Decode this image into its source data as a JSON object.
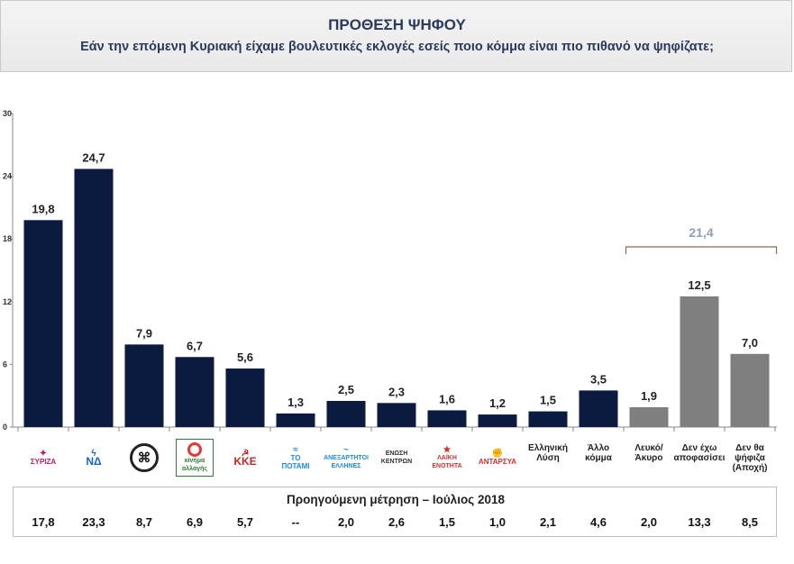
{
  "header": {
    "title": "ΠΡΟΘΕΣΗ ΨΗΦΟΥ",
    "subtitle": "Εάν την επόμενη Κυριακή είχαμε βουλευτικές εκλογές εσείς ποιο κόμμα είναι πιο πιθανό να ψηφίζατε;"
  },
  "chart_data": {
    "type": "bar",
    "title": "ΠΡΟΘΕΣΗ ΨΗΦΟΥ",
    "categories": [
      "ΣΥΡΙΖΑ",
      "ΝΔ",
      "Χρυσή Αυγή",
      "κίνημα αλλαγής",
      "ΚΚΕ",
      "ΤΟ ΠΟΤΑΜΙ",
      "ΑΝΕΞΑΡΤΗΤΟΙ ΕΛΛΗΝΕΣ",
      "ΕΝΩΣΗ ΚΕΝΤΡΩΝ",
      "ΛΑΪΚΗ ΕΝΟΤΗΤΑ",
      "ΑΝΤΑΡΣΥΑ",
      "Ελληνική Λύση",
      "Άλλο κόμμα",
      "Λευκό/ Άκυρο",
      "Δεν έχω αποφασίσει",
      "Δεν θα ψήφιζα (Αποχή)"
    ],
    "values": [
      19.8,
      24.7,
      7.9,
      6.7,
      5.6,
      1.3,
      2.5,
      2.3,
      1.6,
      1.2,
      1.5,
      3.5,
      1.9,
      12.5,
      7.0
    ],
    "value_labels": [
      "19,8",
      "24,7",
      "7,9",
      "6,7",
      "5,6",
      "1,3",
      "2,5",
      "2,3",
      "1,6",
      "1,2",
      "1,5",
      "3,5",
      "1,9",
      "12,5",
      "7,0"
    ],
    "bar_groups": [
      "party",
      "party",
      "party",
      "party",
      "party",
      "party",
      "party",
      "party",
      "party",
      "party",
      "party",
      "party",
      "other",
      "other",
      "other"
    ],
    "colors": {
      "party": "#0b1a3f",
      "other": "#7f7f7f",
      "bracket": "#8a6a50",
      "bracket_label": "#8ea0b5"
    },
    "ylim": [
      0,
      30
    ],
    "yticks": [
      0,
      6,
      12,
      18,
      24,
      30
    ],
    "bracket": {
      "label": "21,4",
      "from_index": 12,
      "to_index": 14
    },
    "previous": {
      "title": "Προηγούμενη μέτρηση – Ιούλιος 2018",
      "values": [
        "17,8",
        "23,3",
        "8,7",
        "6,9",
        "5,7",
        "--",
        "2,0",
        "2,6",
        "1,5",
        "1,0",
        "2,1",
        "4,6",
        "2,0",
        "13,3",
        "8,5"
      ]
    },
    "logos": [
      {
        "icon": "syriza-logo",
        "text": "ΣΥΡΙΖΑ",
        "color": "#c2185b"
      },
      {
        "icon": "nd-logo",
        "text": "ΝΔ",
        "color": "#1565c0"
      },
      {
        "icon": "golden-dawn-logo",
        "text": "",
        "color": "#222222"
      },
      {
        "icon": "kinal-logo",
        "text": "κίνημα αλλαγής",
        "color": "#2e7d32"
      },
      {
        "icon": "kke-logo",
        "text": "ΚΚΕ",
        "color": "#c62828"
      },
      {
        "icon": "potami-logo",
        "text": "ΤΟ ΠΟΤΑΜΙ",
        "color": "#1e88e5"
      },
      {
        "icon": "anel-logo",
        "text": "ΑΝΕΞΑΡΤΗΤΟΙ ΕΛΛΗΝΕΣ",
        "color": "#1e88e5"
      },
      {
        "icon": "enosi-kentroon-logo",
        "text": "ΕΝΩΣΗ ΚΕΝΤΡΩΝ",
        "color": "#333333"
      },
      {
        "icon": "laiki-enotita-logo",
        "text": "ΛΑΪΚΗ ΕΝΟΤΗΤΑ",
        "color": "#d32f2f"
      },
      {
        "icon": "antarsya-logo",
        "text": "ΑΝΤΑΡΣΥΑ",
        "color": "#d32f2f"
      }
    ],
    "text_categories": [
      {
        "lines": [
          "Ελληνική",
          "Λύση"
        ]
      },
      {
        "lines": [
          "Άλλο",
          "κόμμα"
        ]
      },
      {
        "lines": [
          "Λευκό/",
          "Άκυρο"
        ]
      },
      {
        "lines": [
          "Δεν έχω",
          "αποφασίσει"
        ]
      },
      {
        "lines": [
          "Δεν θα",
          "ψήφιζα",
          "(Αποχή)"
        ]
      }
    ]
  }
}
